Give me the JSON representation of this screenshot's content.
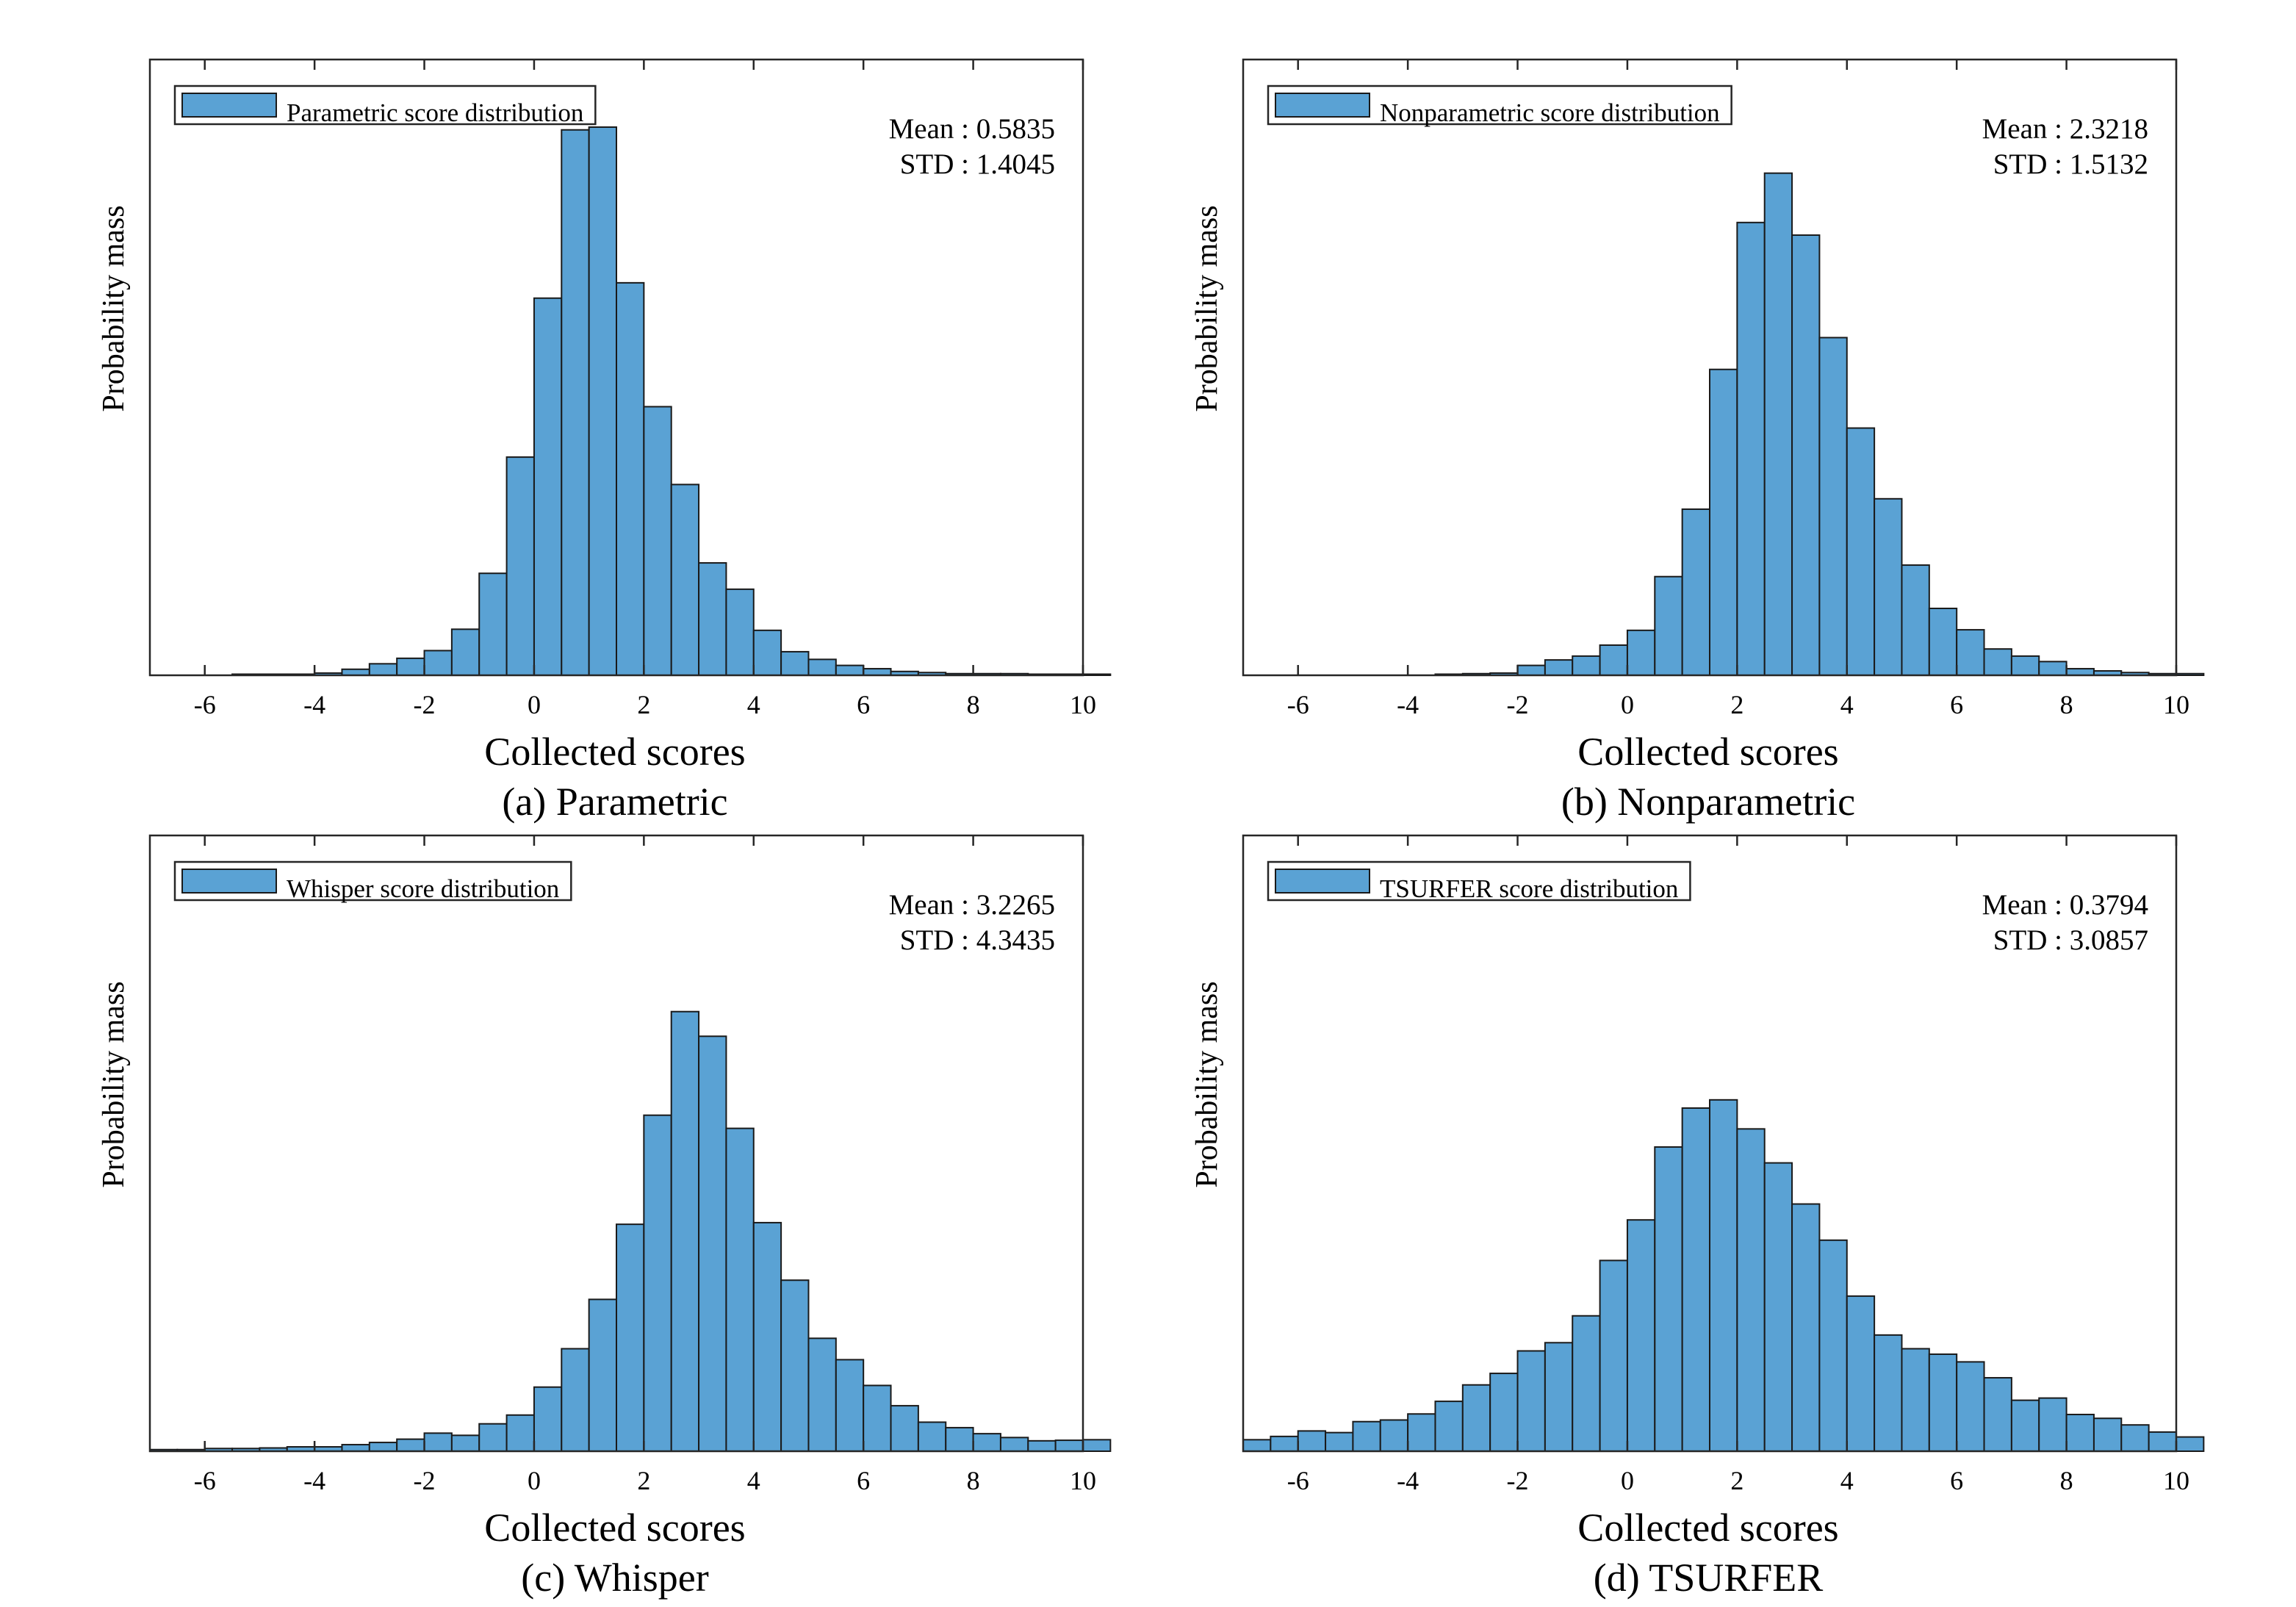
{
  "chart_data": [
    {
      "type": "bar",
      "subtype": "histogram",
      "caption": "(a) Parametric",
      "xlabel": "Collected scores",
      "ylabel": "Probability mass",
      "xlim": [
        -7,
        10
      ],
      "xticks": [
        -6,
        -4,
        -2,
        0,
        2,
        4,
        6,
        8,
        10
      ],
      "ylim": [
        0,
        1
      ],
      "grid": false,
      "legend": {
        "label": "Parametric score distribution",
        "position": "top-left"
      },
      "stats": {
        "mean_text": "Mean : 0.5835",
        "std_text": "STD  : 1.4045"
      },
      "bin_width": 0.5,
      "bin_start": -7,
      "values": [
        0,
        0,
        0,
        0.002,
        0.002,
        0.002,
        0.004,
        0.011,
        0.021,
        0.031,
        0.045,
        0.084,
        0.186,
        0.398,
        0.688,
        0.995,
        1.0,
        0.716,
        0.49,
        0.348,
        0.205,
        0.157,
        0.082,
        0.043,
        0.029,
        0.018,
        0.012,
        0.007,
        0.005,
        0.003,
        0.003,
        0.003,
        0.002,
        0.002,
        0.002
      ]
    },
    {
      "type": "bar",
      "subtype": "histogram",
      "caption": "(b) Nonparametric",
      "xlabel": "Collected scores",
      "ylabel": "Probability mass",
      "xlim": [
        -7,
        10
      ],
      "xticks": [
        -6,
        -4,
        -2,
        0,
        2,
        4,
        6,
        8,
        10
      ],
      "ylim": [
        0,
        1
      ],
      "grid": false,
      "legend": {
        "label": "Nonparametric score distribution",
        "position": "top-left"
      },
      "stats": {
        "mean_text": "Mean : 2.3218",
        "std_text": "STD  : 1.5132"
      },
      "bin_width": 0.5,
      "bin_start": -7,
      "values": [
        0,
        0,
        0,
        0,
        0,
        0,
        0,
        0.002,
        0.003,
        0.004,
        0.018,
        0.028,
        0.035,
        0.055,
        0.082,
        0.18,
        0.303,
        0.558,
        0.826,
        0.916,
        0.803,
        0.616,
        0.451,
        0.322,
        0.201,
        0.122,
        0.083,
        0.048,
        0.035,
        0.025,
        0.012,
        0.008,
        0.005,
        0.003,
        0.003
      ]
    },
    {
      "type": "bar",
      "subtype": "histogram",
      "caption": "(c) Whisper",
      "xlabel": "Collected scores",
      "ylabel": "Probability mass",
      "xlim": [
        -7,
        10
      ],
      "xticks": [
        -6,
        -4,
        -2,
        0,
        2,
        4,
        6,
        8,
        10
      ],
      "ylim": [
        0,
        1
      ],
      "grid": false,
      "legend": {
        "label": "Whisper score distribution",
        "position": "top-left"
      },
      "stats": {
        "mean_text": "Mean : 3.2265",
        "std_text": "STD  : 4.3435"
      },
      "bin_width": 0.5,
      "bin_start": -7,
      "values": [
        0.003,
        0.003,
        0.005,
        0.005,
        0.006,
        0.008,
        0.008,
        0.012,
        0.016,
        0.022,
        0.033,
        0.029,
        0.05,
        0.066,
        0.117,
        0.187,
        0.277,
        0.414,
        0.613,
        0.802,
        0.757,
        0.589,
        0.417,
        0.312,
        0.206,
        0.167,
        0.12,
        0.083,
        0.053,
        0.043,
        0.032,
        0.025,
        0.019,
        0.02,
        0.021
      ]
    },
    {
      "type": "bar",
      "subtype": "histogram",
      "caption": "(d) TSURFER",
      "xlabel": "Collected scores",
      "ylabel": "Probability mass",
      "xlim": [
        -7,
        10
      ],
      "xticks": [
        -6,
        -4,
        -2,
        0,
        2,
        4,
        6,
        8,
        10
      ],
      "ylim": [
        0,
        1
      ],
      "grid": false,
      "legend": {
        "label": "TSURFER score distribution",
        "position": "top-left"
      },
      "stats": {
        "mean_text": "Mean : 0.3794",
        "std_text": "STD  : 3.0857"
      },
      "bin_width": 0.5,
      "bin_start": -7,
      "values": [
        0.021,
        0.027,
        0.037,
        0.034,
        0.054,
        0.057,
        0.068,
        0.091,
        0.121,
        0.142,
        0.183,
        0.198,
        0.247,
        0.348,
        0.422,
        0.555,
        0.626,
        0.641,
        0.588,
        0.526,
        0.451,
        0.385,
        0.283,
        0.212,
        0.187,
        0.177,
        0.163,
        0.134,
        0.093,
        0.097,
        0.067,
        0.06,
        0.048,
        0.035,
        0.026
      ]
    }
  ]
}
